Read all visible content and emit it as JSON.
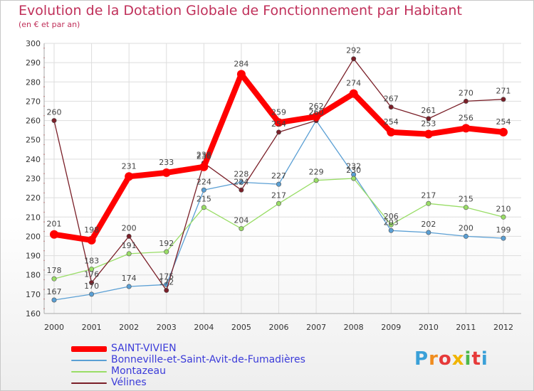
{
  "header": {
    "title": "Evolution de la Dotation Globale de Fonctionnement par Habitant",
    "subtitle": "(en € et par an)"
  },
  "logo": {
    "text": "Proxiti"
  },
  "chart_data": {
    "type": "line",
    "title": "Evolution de la Dotation Globale de Fonctionnement par Habitant",
    "subtitle": "(en € et par an)",
    "xlabel": "",
    "ylabel": "",
    "x": [
      "2000",
      "2001",
      "2002",
      "2003",
      "2004",
      "2005",
      "2006",
      "2007",
      "2008",
      "2009",
      "2010",
      "2011",
      "2012"
    ],
    "ylim": [
      160,
      300
    ],
    "yticks": [
      "160",
      "170",
      "180",
      "190",
      "200",
      "210",
      "220",
      "230",
      "240",
      "250",
      "260",
      "270",
      "280",
      "290",
      "300"
    ],
    "grid": true,
    "legend_position": "bottom-left",
    "series": [
      {
        "name": "SAINT-VIVIEN",
        "color": "#ff0000",
        "values": [
          201,
          198,
          231,
          233,
          236,
          284,
          259,
          262,
          274,
          254,
          253,
          256,
          254
        ],
        "labels": [
          "201",
          "198",
          "231",
          "233",
          "236",
          "284",
          "259",
          "262",
          "274",
          "254",
          "253",
          "256",
          "254"
        ]
      },
      {
        "name": "Bonneville-et-Saint-Avit-de-Fumadières",
        "color": "#5a9fd4",
        "values": [
          167,
          170,
          174,
          175,
          224,
          228,
          227,
          260,
          232,
          203,
          202,
          200,
          199
        ],
        "labels": [
          "167",
          "170",
          "174",
          "175",
          "224",
          "228",
          "227",
          "260",
          "232",
          "203",
          "202",
          "200",
          "199"
        ]
      },
      {
        "name": "Montazeau",
        "color": "#99dd66",
        "values": [
          178,
          183,
          191,
          192,
          215,
          204,
          217,
          229,
          230,
          206,
          217,
          215,
          210
        ],
        "labels": [
          "178",
          "183",
          "191",
          "192",
          "215",
          "204",
          "217",
          "229",
          "230",
          "206",
          "217",
          "215",
          "210"
        ]
      },
      {
        "name": "Vélines",
        "color": "#7a1f28",
        "values": [
          260,
          176,
          200,
          172,
          238,
          224,
          254,
          260,
          292,
          267,
          261,
          270,
          271
        ],
        "labels": [
          "260",
          "176",
          "200",
          "172",
          "238",
          "224",
          "254",
          "260",
          "292",
          "267",
          "261",
          "270",
          "271"
        ]
      }
    ]
  }
}
